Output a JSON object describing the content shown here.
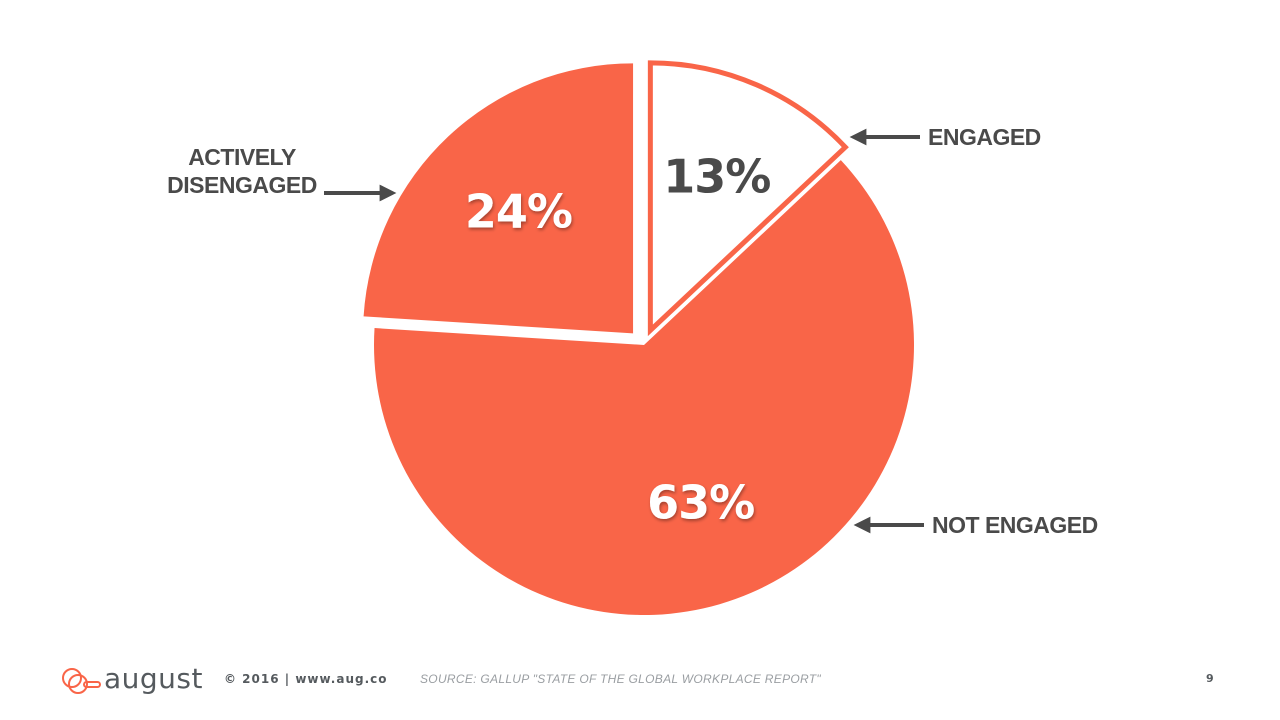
{
  "chart_data": {
    "type": "pie",
    "slices": [
      {
        "name": "ENGAGED",
        "label": "13%",
        "value": 13,
        "exploded": true,
        "fill": "#ffffff",
        "outline": "#f96548",
        "label_color": "#4a4a4a"
      },
      {
        "name": "NOT ENGAGED",
        "label": "63%",
        "value": 63,
        "exploded": false,
        "fill": "#f96548",
        "label_color": "#ffffff"
      },
      {
        "name": "ACTIVELY DISENGAGED",
        "label": "24%",
        "value": 24,
        "exploded": true,
        "fill": "#f96548",
        "label_color": "#ffffff"
      }
    ],
    "callouts": [
      {
        "slice": "ENGAGED",
        "lines": [
          "ENGAGED"
        ]
      },
      {
        "slice": "NOT ENGAGED",
        "lines": [
          "NOT ENGAGED"
        ]
      },
      {
        "slice": "ACTIVELY DISENGAGED",
        "lines": [
          "ACTIVELY",
          "DISENGAGED"
        ]
      }
    ]
  },
  "colors": {
    "accent": "#f96548",
    "text_dark": "#4a4a4a",
    "footer_gray": "#9a9ea2"
  },
  "footer": {
    "logo_text": "august",
    "copyright": "© 2016 | www.aug.co",
    "source": "SOURCE: GALLUP \"STATE OF THE GLOBAL WORKPLACE REPORT\"",
    "page_number": "9"
  }
}
